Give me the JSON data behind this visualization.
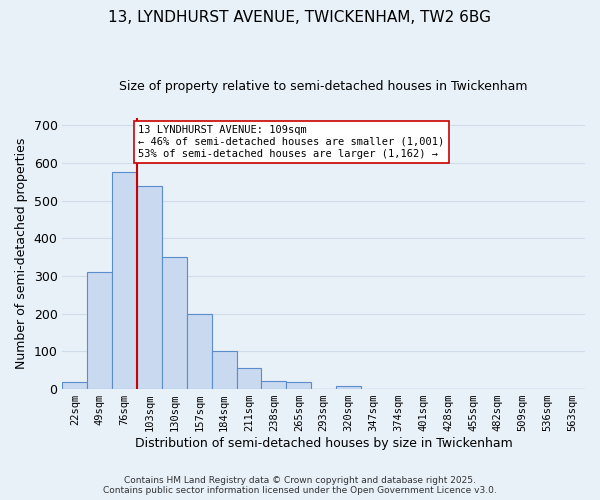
{
  "title1": "13, LYNDHURST AVENUE, TWICKENHAM, TW2 6BG",
  "title2": "Size of property relative to semi-detached houses in Twickenham",
  "bar_labels": [
    "22sqm",
    "49sqm",
    "76sqm",
    "103sqm",
    "130sqm",
    "157sqm",
    "184sqm",
    "211sqm",
    "238sqm",
    "265sqm",
    "293sqm",
    "320sqm",
    "347sqm",
    "374sqm",
    "401sqm",
    "428sqm",
    "455sqm",
    "482sqm",
    "509sqm",
    "536sqm",
    "563sqm"
  ],
  "bar_values": [
    20,
    310,
    575,
    540,
    350,
    200,
    100,
    55,
    22,
    20,
    0,
    8,
    0,
    0,
    0,
    0,
    0,
    0,
    0,
    0,
    0
  ],
  "bar_color": "#c9d9f0",
  "bar_edge_color": "#5b8ccc",
  "vline_x": 3,
  "vline_color": "#cc0000",
  "annotation_text": "13 LYNDHURST AVENUE: 109sqm\n← 46% of semi-detached houses are smaller (1,001)\n53% of semi-detached houses are larger (1,162) →",
  "annotation_box_color": "#ffffff",
  "annotation_box_edge_color": "#cc0000",
  "xlabel": "Distribution of semi-detached houses by size in Twickenham",
  "ylabel": "Number of semi-detached properties",
  "ylim": [
    0,
    720
  ],
  "yticks": [
    0,
    100,
    200,
    300,
    400,
    500,
    600,
    700
  ],
  "grid_color": "#d0dce8",
  "bg_color": "#e8f0f8",
  "footer1": "Contains HM Land Registry data © Crown copyright and database right 2025.",
  "footer2": "Contains public sector information licensed under the Open Government Licence v3.0."
}
